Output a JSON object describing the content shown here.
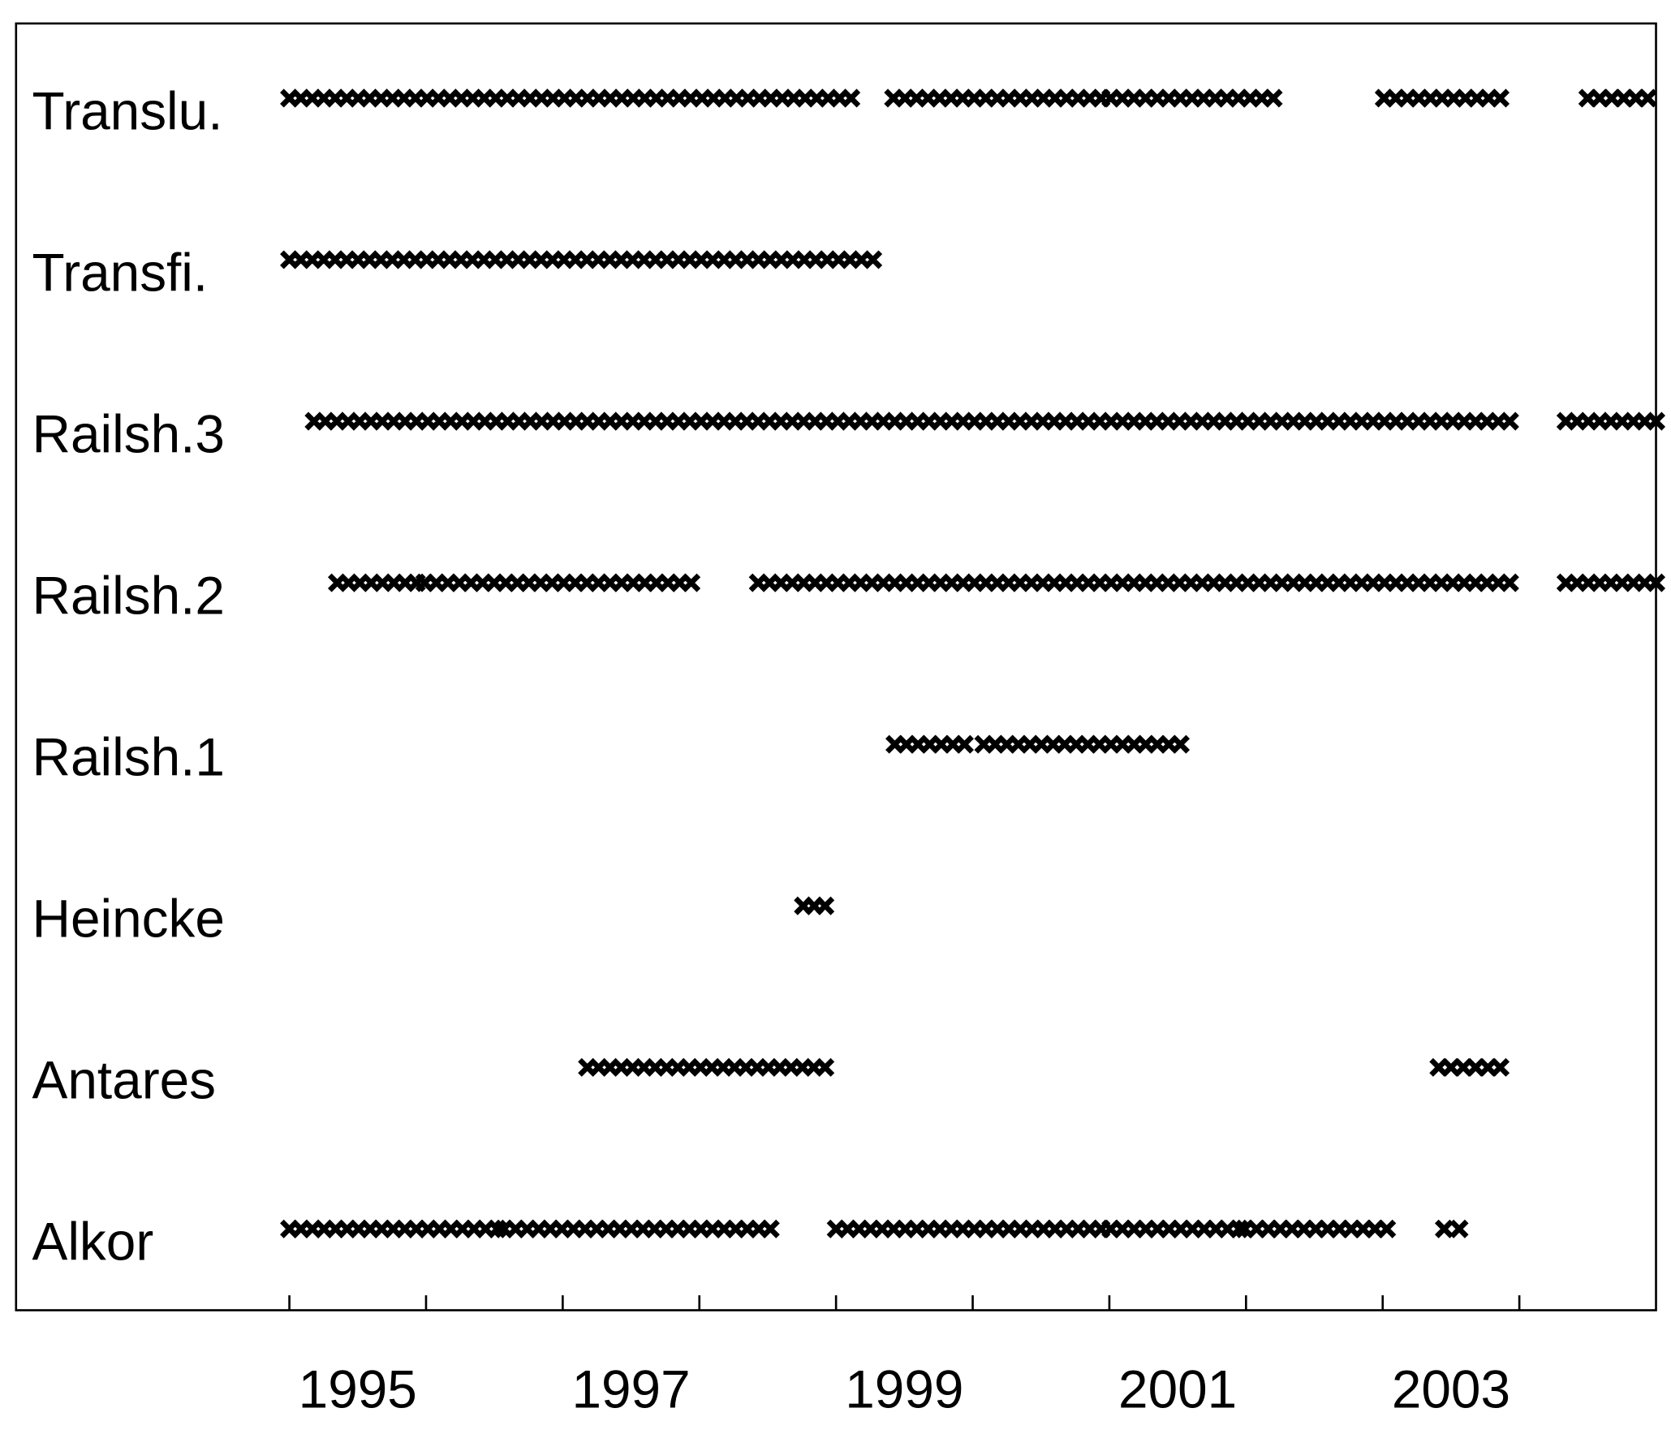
{
  "chart_data": {
    "type": "timeline",
    "categories": [
      "Translu.",
      "Transfi.",
      "Railsh.3",
      "Railsh.2",
      "Railsh.1",
      "Heincke",
      "Antares",
      "Alkor"
    ],
    "segments": [
      [
        [
          1994.5,
          1998.61
        ],
        [
          1998.92,
          2000.44
        ],
        [
          2000.51,
          2001.7
        ],
        [
          2002.51,
          2003.36
        ],
        [
          2004.0,
          2004.44
        ]
      ],
      [
        [
          1994.5,
          1998.77
        ]
      ],
      [
        [
          1994.68,
          2003.43
        ],
        [
          2003.84,
          2004.5
        ]
      ],
      [
        [
          1994.85,
          1995.43
        ],
        [
          1995.49,
          1997.44
        ],
        [
          1997.93,
          2003.43
        ],
        [
          2003.84,
          2004.5
        ]
      ],
      [
        [
          1998.93,
          1999.44
        ],
        [
          1999.58,
          2001.02
        ]
      ],
      [
        [
          1998.26,
          1998.42
        ]
      ],
      [
        [
          1996.68,
          1998.42
        ],
        [
          2002.91,
          2003.36
        ]
      ],
      [
        [
          1994.5,
          1996.02
        ],
        [
          1996.07,
          1998.02
        ],
        [
          1998.5,
          2000.44
        ],
        [
          2000.51,
          2001.45
        ],
        [
          2001.49,
          2002.53
        ],
        [
          2002.95,
          2003.06
        ]
      ]
    ],
    "xlim": [
      1992.5,
      2004.5
    ],
    "xticks": [
      1995,
      1997,
      1999,
      2001,
      2003
    ],
    "minor_xticks": [
      1994.5,
      1995.5,
      1996.5,
      1997.5,
      1998.5,
      1999.5,
      2000.5,
      2001.5,
      2002.5,
      2003.5
    ],
    "marker": "x",
    "color": "#000000"
  }
}
